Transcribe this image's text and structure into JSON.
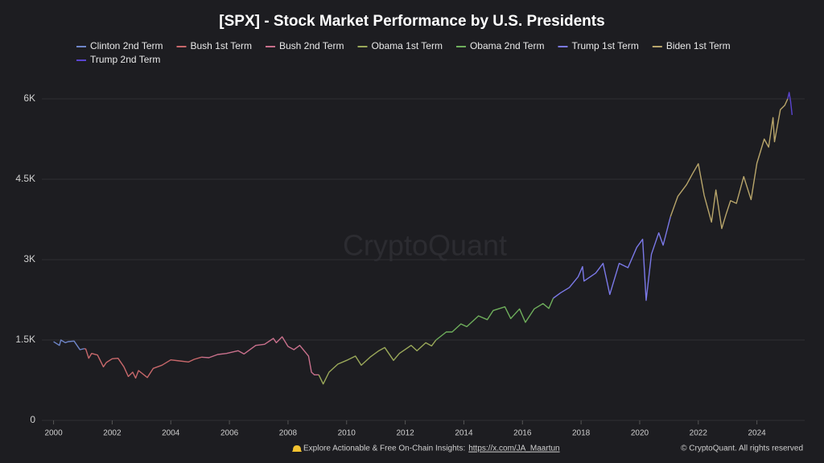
{
  "chart_data": {
    "type": "line",
    "title": "[SPX] - Stock Market Performance by U.S. Presidents",
    "watermark": "CryptoQuant",
    "footer": "Explore Actionable & Free On-Chain Insights:",
    "footer_link": "https://x.com/JA_Maartun",
    "copyright": "© CryptoQuant. All rights reserved",
    "xlim": [
      1999.6,
      2025.63
    ],
    "xticks": [
      2000,
      2002,
      2004,
      2006,
      2008,
      2010,
      2012,
      2014,
      2016,
      2018,
      2020,
      2022,
      2024
    ],
    "ylim": [
      0,
      6420
    ],
    "yticks": [
      0,
      {
        "value": 1500,
        "label": "1.5K"
      },
      {
        "value": 3000,
        "label": "3K"
      },
      {
        "value": 4500,
        "label": "4.5K"
      },
      {
        "value": 6000,
        "label": "6K"
      }
    ],
    "grid": true,
    "legend": "top",
    "series": [
      {
        "name": "Clinton 2nd Term",
        "color": "#6f86c9",
        "x": [
          2000.0,
          2000.2,
          2000.25,
          2000.4,
          2000.5,
          2000.7,
          2000.8,
          2000.9,
          2001.05
        ],
        "values": [
          1469,
          1400,
          1500,
          1450,
          1470,
          1480,
          1400,
          1320,
          1340
        ]
      },
      {
        "name": "Bush 1st Term",
        "color": "#c8686b",
        "x": [
          2001.05,
          2001.1,
          2001.2,
          2001.3,
          2001.5,
          2001.7,
          2001.8,
          2002.0,
          2002.2,
          2002.4,
          2002.55,
          2002.7,
          2002.8,
          2002.9,
          2003.2,
          2003.4,
          2003.7,
          2004.0,
          2004.3,
          2004.6,
          2004.8,
          2005.05
        ],
        "values": [
          1340,
          1330,
          1160,
          1250,
          1220,
          1000,
          1080,
          1150,
          1160,
          1000,
          820,
          900,
          790,
          930,
          800,
          970,
          1030,
          1130,
          1110,
          1090,
          1140,
          1180
        ]
      },
      {
        "name": "Bush 2nd Term",
        "color": "#c9708c",
        "x": [
          2005.05,
          2005.3,
          2005.6,
          2005.9,
          2006.3,
          2006.5,
          2006.9,
          2007.2,
          2007.5,
          2007.6,
          2007.8,
          2008.0,
          2008.2,
          2008.4,
          2008.7,
          2008.8,
          2008.9,
          2009.05
        ],
        "values": [
          1180,
          1170,
          1230,
          1250,
          1300,
          1240,
          1400,
          1420,
          1530,
          1450,
          1560,
          1380,
          1320,
          1400,
          1200,
          900,
          850,
          850
        ]
      },
      {
        "name": "Obama 1st Term",
        "color": "#9ba95a",
        "x": [
          2009.05,
          2009.2,
          2009.4,
          2009.7,
          2010.0,
          2010.3,
          2010.5,
          2010.8,
          2011.1,
          2011.3,
          2011.6,
          2011.8,
          2012.2,
          2012.4,
          2012.7,
          2012.9,
          2013.05
        ],
        "values": [
          850,
          680,
          900,
          1050,
          1120,
          1200,
          1030,
          1180,
          1300,
          1360,
          1120,
          1250,
          1400,
          1300,
          1450,
          1390,
          1500
        ]
      },
      {
        "name": "Obama 2nd Term",
        "color": "#6faf5c",
        "x": [
          2013.05,
          2013.4,
          2013.6,
          2013.9,
          2014.1,
          2014.5,
          2014.8,
          2015.0,
          2015.4,
          2015.6,
          2015.9,
          2016.1,
          2016.4,
          2016.7,
          2016.9,
          2017.05
        ],
        "values": [
          1500,
          1650,
          1650,
          1800,
          1750,
          1950,
          1880,
          2050,
          2120,
          1900,
          2080,
          1830,
          2080,
          2180,
          2090,
          2280
        ]
      },
      {
        "name": "Trump 1st Term",
        "color": "#7b79e8",
        "x": [
          2017.05,
          2017.3,
          2017.6,
          2017.9,
          2018.05,
          2018.1,
          2018.5,
          2018.75,
          2018.98,
          2019.3,
          2019.6,
          2019.9,
          2020.1,
          2020.22,
          2020.4,
          2020.65,
          2020.8,
          2021.05
        ],
        "values": [
          2280,
          2380,
          2480,
          2680,
          2870,
          2600,
          2750,
          2930,
          2350,
          2930,
          2850,
          3230,
          3380,
          2240,
          3100,
          3500,
          3270,
          3800
        ]
      },
      {
        "name": "Biden 1st Term",
        "color": "#b9a66b",
        "x": [
          2021.05,
          2021.3,
          2021.6,
          2021.8,
          2022.0,
          2022.2,
          2022.45,
          2022.6,
          2022.8,
          2022.95,
          2023.1,
          2023.3,
          2023.55,
          2023.8,
          2024.0,
          2024.25,
          2024.4,
          2024.55,
          2024.6,
          2024.8,
          2024.95,
          2025.05
        ],
        "values": [
          3800,
          4180,
          4400,
          4600,
          4790,
          4200,
          3700,
          4300,
          3580,
          3850,
          4100,
          4050,
          4550,
          4120,
          4800,
          5250,
          5100,
          5650,
          5200,
          5800,
          5880,
          6000
        ]
      },
      {
        "name": "Trump 2nd Term",
        "color": "#5a44d0",
        "x": [
          2025.05,
          2025.1,
          2025.15,
          2025.2
        ],
        "values": [
          6000,
          6120,
          5950,
          5700
        ]
      }
    ]
  }
}
